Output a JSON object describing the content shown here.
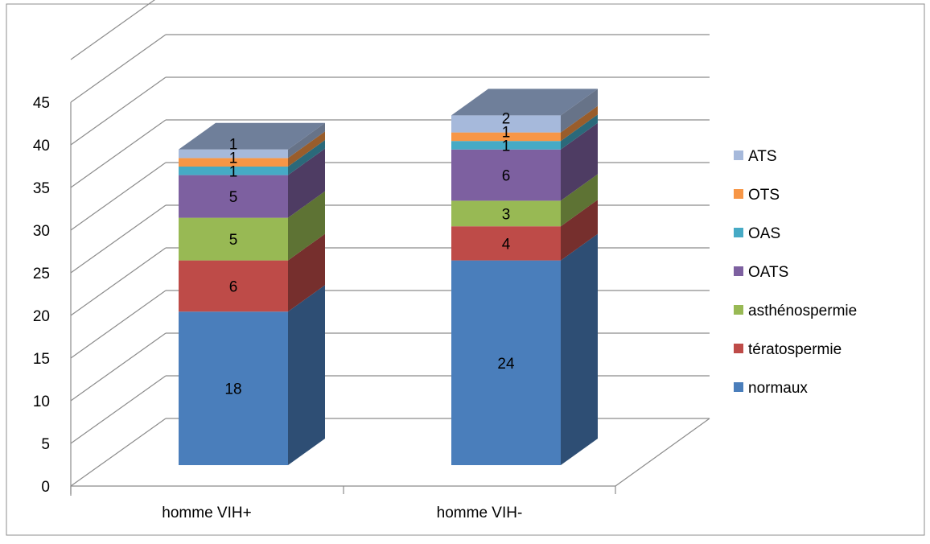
{
  "chart_data": {
    "type": "bar",
    "stacked": true,
    "three_d": true,
    "categories": [
      "homme VIH+",
      "homme VIH-"
    ],
    "series": [
      {
        "name": "normaux",
        "values": [
          18,
          24
        ],
        "color": "#4A7EBB"
      },
      {
        "name": "tératospermie",
        "values": [
          6,
          4
        ],
        "color": "#BE4B48"
      },
      {
        "name": "asthénospermie",
        "values": [
          5,
          3
        ],
        "color": "#98B954"
      },
      {
        "name": "OATS",
        "values": [
          5,
          6
        ],
        "color": "#7D60A0"
      },
      {
        "name": "OAS",
        "values": [
          1,
          1
        ],
        "color": "#46AAC5"
      },
      {
        "name": "OTS",
        "values": [
          1,
          1
        ],
        "color": "#F79646"
      },
      {
        "name": "ATS",
        "values": [
          1,
          2
        ],
        "color": "#A6B9DB"
      }
    ],
    "y_ticks": [
      "0",
      "5",
      "10",
      "15",
      "20",
      "25",
      "30",
      "35",
      "40",
      "45"
    ],
    "ylim": [
      0,
      45
    ],
    "grid": true,
    "legend_position": "right",
    "data_labels": true
  }
}
